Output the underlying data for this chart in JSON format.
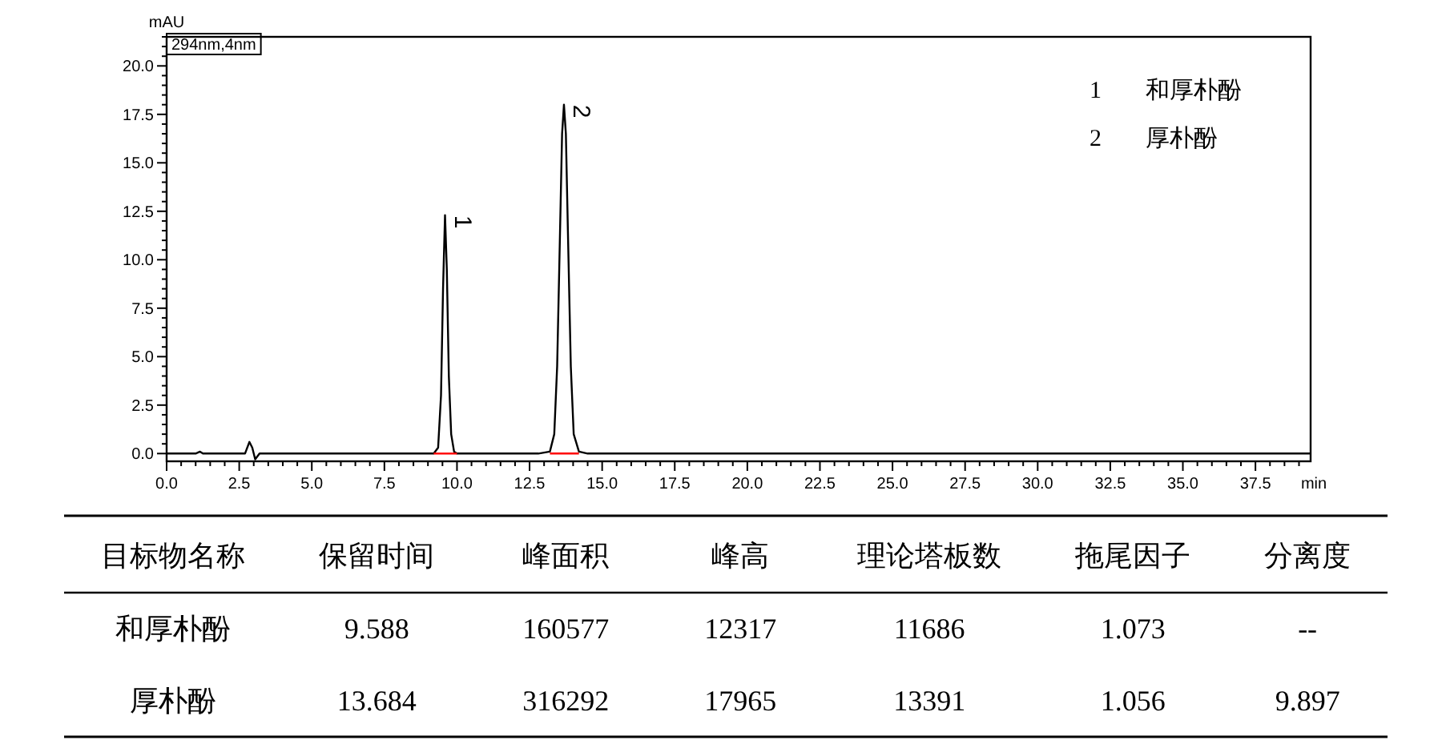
{
  "chart_data": [
    {
      "type": "line",
      "xlabel": "min",
      "ylabel": "mAU",
      "xlim": [
        0,
        39.4
      ],
      "ylim": [
        -0.4,
        21.5
      ],
      "xticks": [
        {
          "value": 0,
          "label": "0.0"
        },
        {
          "value": 2.5,
          "label": "2.5"
        },
        {
          "value": 5,
          "label": "5.0"
        },
        {
          "value": 7.5,
          "label": "7.5"
        },
        {
          "value": 10,
          "label": "10.0"
        },
        {
          "value": 12.5,
          "label": "12.5"
        },
        {
          "value": 15,
          "label": "15.0"
        },
        {
          "value": 17.5,
          "label": "17.5"
        },
        {
          "value": 20,
          "label": "20.0"
        },
        {
          "value": 22.5,
          "label": "22.5"
        },
        {
          "value": 25,
          "label": "25.0"
        },
        {
          "value": 27.5,
          "label": "27.5"
        },
        {
          "value": 30,
          "label": "30.0"
        },
        {
          "value": 32.5,
          "label": "32.5"
        },
        {
          "value": 35,
          "label": "35.0"
        },
        {
          "value": 37.5,
          "label": "37.5"
        }
      ],
      "yticks": [
        {
          "value": 0,
          "label": "0.0"
        },
        {
          "value": 2.5,
          "label": "2.5"
        },
        {
          "value": 5,
          "label": "5.0"
        },
        {
          "value": 7.5,
          "label": "7.5"
        },
        {
          "value": 10,
          "label": "10.0"
        },
        {
          "value": 12.5,
          "label": "12.5"
        },
        {
          "value": 15,
          "label": "15.0"
        },
        {
          "value": 17.5,
          "label": "17.5"
        },
        {
          "value": 20,
          "label": "20.0"
        }
      ],
      "series": [
        {
          "color": "#000000",
          "x": [
            0,
            1.0,
            1.15,
            1.25,
            2.7,
            2.85,
            2.95,
            3.05,
            3.2,
            3.5,
            8.0,
            9.2,
            9.35,
            9.45,
            9.52,
            9.588,
            9.65,
            9.72,
            9.8,
            9.9,
            10.0,
            12.8,
            13.2,
            13.35,
            13.45,
            13.55,
            13.62,
            13.684,
            13.75,
            13.82,
            13.92,
            14.02,
            14.2,
            14.5,
            17,
            20,
            25,
            30,
            35,
            39.4
          ],
          "values": [
            0.0,
            0.0,
            0.1,
            0.0,
            0.0,
            0.6,
            0.3,
            -0.3,
            0.0,
            0.0,
            0.0,
            0.0,
            0.3,
            3.0,
            8.5,
            12.3,
            9.5,
            4.0,
            1.0,
            0.1,
            0.0,
            0.0,
            0.1,
            1.0,
            4.5,
            11.5,
            16.5,
            18.0,
            16.5,
            11.5,
            4.5,
            1.0,
            0.1,
            0.0,
            0.0,
            0.0,
            0.0,
            0.0,
            0.0,
            0.0
          ]
        },
        {
          "color": "#ff0000",
          "x": [
            9.2,
            10.0
          ],
          "values": [
            0,
            0
          ]
        },
        {
          "color": "#ff0000",
          "x": [
            13.2,
            14.2
          ],
          "values": [
            0,
            0
          ]
        }
      ],
      "annotations": [
        "294nm,4nm",
        {
          "text": "1",
          "x": 9.7,
          "y": 12.3
        },
        {
          "text": "2",
          "x": 13.8,
          "y": 18.0
        },
        "1",
        "和厚朴酚",
        "2",
        "厚朴酚"
      ],
      "tick_labels": true
    },
    {
      "type": "other",
      "categories": [
        "目标物名称",
        "保留时间",
        "峰面积",
        "峰高",
        "理论塔板数",
        "拖尾因子",
        "分离度"
      ],
      "annotations": [
        "和厚朴酚",
        "9.588",
        "160577",
        "12317",
        "11686",
        "1.073",
        "--",
        "厚朴酚",
        "13.684",
        "316292",
        "17965",
        "13391",
        "1.056",
        "9.897"
      ]
    }
  ]
}
